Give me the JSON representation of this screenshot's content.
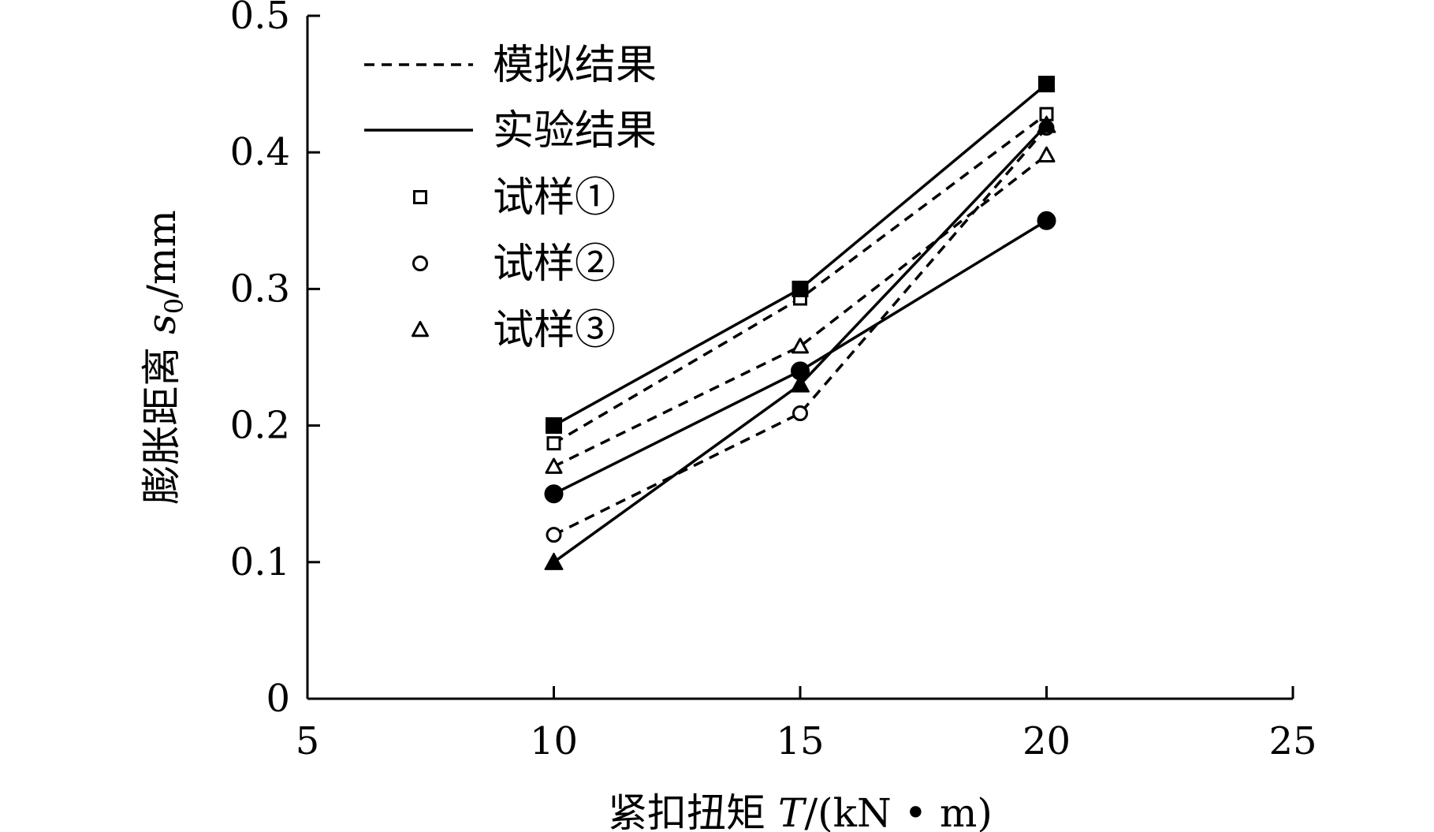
{
  "chart_data": {
    "type": "line",
    "x": [
      10,
      15,
      20
    ],
    "xlim": [
      5,
      25
    ],
    "ylim": [
      0,
      0.5
    ],
    "xticks": [
      "5",
      "10",
      "15",
      "20",
      "25"
    ],
    "yticks": [
      "0",
      "0.1",
      "0.2",
      "0.3",
      "0.4",
      "0.5"
    ],
    "xlabel": {
      "pre": "紧扣扭矩 ",
      "var": "T",
      "post": "/(kN • m)"
    },
    "ylabel": {
      "pre": "膨胀距离 ",
      "var": "s",
      "sub": "0",
      "post": "/mm"
    },
    "legend": {
      "position": "top-left",
      "entries": [
        {
          "label": "模拟结果",
          "style": "dashed"
        },
        {
          "label": "实验结果",
          "style": "solid"
        },
        {
          "label": "试样①",
          "marker": "square"
        },
        {
          "label": "试样②",
          "marker": "circle"
        },
        {
          "label": "试样③",
          "marker": "triangle"
        }
      ]
    },
    "series": [
      {
        "specimen": 1,
        "kind": "simulation",
        "marker": "square",
        "filled": false,
        "values": [
          0.187,
          0.293,
          0.428
        ]
      },
      {
        "specimen": 1,
        "kind": "experiment",
        "marker": "square",
        "filled": true,
        "values": [
          0.2,
          0.3,
          0.45
        ]
      },
      {
        "specimen": 2,
        "kind": "simulation",
        "marker": "circle",
        "filled": false,
        "values": [
          0.12,
          0.209,
          0.418
        ]
      },
      {
        "specimen": 2,
        "kind": "experiment",
        "marker": "circle",
        "filled": true,
        "values": [
          0.15,
          0.24,
          0.35
        ]
      },
      {
        "specimen": 3,
        "kind": "simulation",
        "marker": "triangle",
        "filled": false,
        "values": [
          0.17,
          0.258,
          0.398
        ]
      },
      {
        "specimen": 3,
        "kind": "experiment",
        "marker": "triangle",
        "filled": true,
        "values": [
          0.1,
          0.23,
          0.42
        ]
      }
    ],
    "colors": {
      "line": "#000000",
      "background": "#ffffff"
    },
    "grid": false
  }
}
